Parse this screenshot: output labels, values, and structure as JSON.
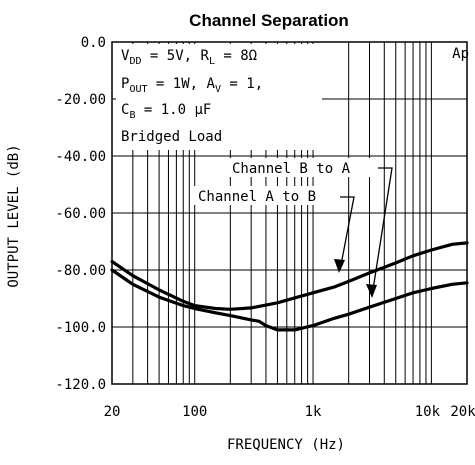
{
  "chart_data": {
    "type": "line",
    "title": "Channel Separation",
    "xlabel": "FREQUENCY (Hz)",
    "ylabel": "OUTPUT LEVEL (dB)",
    "xscale": "log",
    "xlim": [
      20,
      20000
    ],
    "ylim": [
      -120,
      0
    ],
    "x_ticks": [
      20,
      100,
      1000,
      10000,
      20000
    ],
    "x_tick_labels": [
      "20",
      "100",
      "1k",
      "10k",
      "20k"
    ],
    "y_ticks": [
      0,
      -20,
      -40,
      -60,
      -80,
      -100,
      -120
    ],
    "y_tick_labels": [
      "0.0",
      "-20.00",
      "-40.00",
      "-60.00",
      "-80.00",
      "-100.0",
      "-120.0"
    ],
    "grid": true,
    "corner_label": "Ap",
    "conditions": {
      "vdd": {
        "name": "V",
        "sub": "DD",
        "value": " = 5V, "
      },
      "rl": {
        "name": "R",
        "sub": "L",
        "value": " = 8Ω"
      },
      "pout": {
        "name": "P",
        "sub": "OUT",
        "value": " = 1W, "
      },
      "av": {
        "name": "A",
        "sub": "V",
        "value": " = 1,"
      },
      "cb": {
        "name": "C",
        "sub": "B",
        "value": " = 1.0 μF"
      },
      "load": "Bridged Load"
    },
    "series": [
      {
        "name": "Channel B to A",
        "x": [
          20,
          30,
          50,
          80,
          100,
          150,
          200,
          300,
          500,
          700,
          1000,
          1500,
          2000,
          3000,
          5000,
          7000,
          10000,
          15000,
          20000
        ],
        "y": [
          -77,
          -82,
          -87,
          -91,
          -92.5,
          -93.5,
          -93.8,
          -93.3,
          -91.5,
          -89.8,
          -88,
          -86,
          -84,
          -81,
          -77.5,
          -75,
          -73,
          -71,
          -70.5
        ]
      },
      {
        "name": "Channel A to B",
        "x": [
          20,
          30,
          50,
          80,
          100,
          150,
          200,
          300,
          350,
          400,
          500,
          700,
          1000,
          1500,
          2000,
          3000,
          5000,
          7000,
          10000,
          15000,
          20000
        ],
        "y": [
          -80,
          -85,
          -89.5,
          -92.5,
          -93.5,
          -95,
          -96,
          -97.5,
          -98,
          -99.5,
          -101,
          -101,
          -99.5,
          -97,
          -95.5,
          -93,
          -90,
          -88,
          -86.5,
          -85,
          -84.5
        ]
      }
    ]
  }
}
